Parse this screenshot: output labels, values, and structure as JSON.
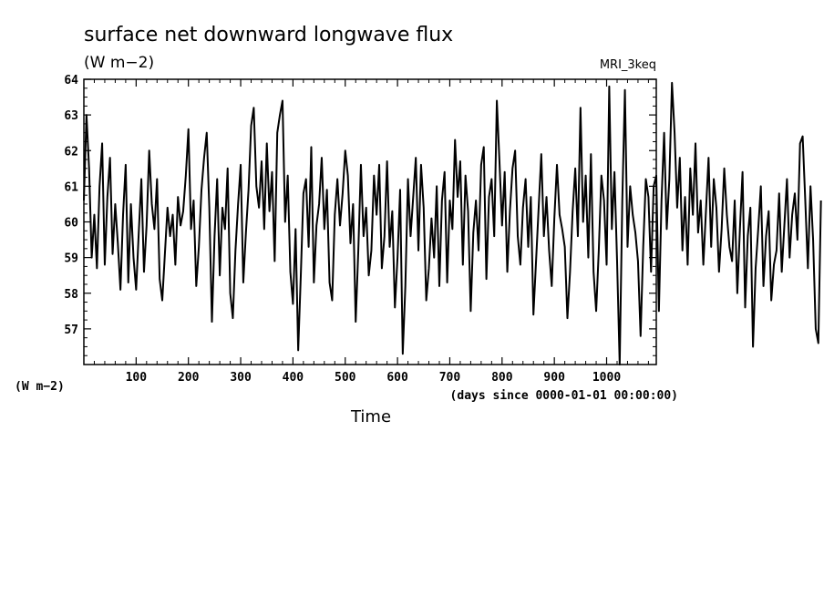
{
  "chart_data": {
    "type": "line",
    "title": "surface net downward longwave flux",
    "units": "(W m−2)",
    "model": "MRI_3keq",
    "xlabel": "Time",
    "x_units": "(days since 0000-01-01 00:00:00)",
    "y_axis_units_label": "(W m−2)",
    "xlim": [
      0,
      1095
    ],
    "ylim": [
      56,
      64
    ],
    "x_ticks": [
      100,
      200,
      300,
      400,
      500,
      600,
      700,
      800,
      900,
      1000
    ],
    "y_ticks": [
      57,
      58,
      59,
      60,
      61,
      62,
      63,
      64
    ],
    "grid": false,
    "line_color": "#000000",
    "series": [
      {
        "x_start": 0,
        "x_step": 5,
        "values": [
          60.6,
          63.0,
          61.5,
          59.0,
          60.2,
          58.7,
          61.0,
          62.2,
          58.8,
          60.7,
          61.8,
          59.1,
          60.5,
          59.4,
          58.1,
          60.2,
          61.6,
          58.3,
          60.5,
          59.0,
          58.1,
          59.7,
          61.2,
          58.6,
          59.9,
          62.0,
          60.5,
          59.8,
          61.2,
          58.4,
          57.8,
          59.1,
          60.4,
          59.6,
          60.2,
          58.8,
          60.7,
          59.9,
          60.3,
          61.3,
          62.6,
          59.8,
          60.6,
          58.2,
          59.3,
          60.9,
          61.8,
          62.5,
          60.4,
          57.2,
          59.6,
          61.2,
          58.5,
          60.4,
          59.8,
          61.5,
          58.0,
          57.3,
          59.2,
          60.5,
          61.6,
          58.3,
          59.7,
          60.9,
          62.7,
          63.2,
          61.0,
          60.4,
          61.7,
          59.8,
          62.2,
          60.3,
          61.4,
          58.9,
          62.5,
          63.0,
          63.4,
          60.0,
          61.3,
          58.6,
          57.7,
          59.8,
          56.4,
          58.5,
          60.8,
          61.2,
          59.3,
          62.1,
          58.3,
          59.9,
          60.5,
          61.8,
          59.8,
          60.9,
          58.3,
          57.8,
          60.2,
          61.2,
          59.9,
          60.8,
          62.0,
          61.3,
          59.4,
          60.5,
          57.2,
          59.2,
          61.6,
          59.6,
          60.4,
          58.5,
          59.2,
          61.3,
          60.2,
          61.6,
          58.7,
          59.6,
          61.7,
          59.3,
          60.3,
          57.6,
          59.0,
          60.9,
          56.3,
          58.2,
          61.2,
          59.6,
          60.7,
          61.8,
          59.2,
          61.6,
          60.4,
          57.8,
          58.7,
          60.1,
          59.0,
          61.0,
          58.2,
          60.6,
          61.4,
          58.3,
          60.6,
          59.8,
          62.3,
          60.7,
          61.7,
          58.8,
          61.3,
          60.3,
          57.5,
          59.7,
          60.6,
          59.2,
          61.6,
          62.1,
          58.4,
          60.7,
          61.2,
          59.6,
          63.4,
          61.7,
          59.9,
          61.4,
          58.6,
          60.3,
          61.5,
          62.0,
          59.6,
          58.8,
          60.4,
          61.2,
          59.3,
          60.7,
          57.4,
          58.9,
          60.4,
          61.9,
          59.6,
          60.7,
          59.2,
          58.2,
          60.1,
          61.6,
          60.2,
          59.8,
          59.3,
          57.3,
          58.6,
          60.3,
          61.5,
          59.6,
          63.2,
          60.0,
          61.3,
          59.0,
          61.9,
          58.6,
          57.5,
          59.2,
          61.3,
          60.6,
          58.8,
          63.8,
          59.8,
          61.4,
          58.9,
          56.0,
          60.6,
          63.7,
          59.3,
          61.0,
          60.2,
          59.7,
          58.9,
          56.8,
          59.3,
          61.2,
          60.7,
          58.6,
          61.0,
          61.3,
          57.5,
          60.6,
          62.5,
          59.8,
          61.2,
          63.9,
          62.5,
          60.4,
          61.8,
          59.2,
          60.7,
          58.8,
          61.5,
          60.2,
          62.2,
          59.7,
          60.6,
          58.8,
          60.3,
          61.8,
          59.3,
          61.2,
          60.4,
          58.6,
          59.8,
          61.5,
          60.2,
          59.3,
          58.9,
          60.6,
          58.0,
          59.8,
          61.4,
          57.6,
          59.6,
          60.4,
          56.5,
          58.7,
          59.8,
          61.0,
          58.2,
          59.6,
          60.3,
          57.8,
          58.8,
          59.2,
          60.8,
          58.6,
          59.9,
          61.2,
          59.0,
          60.2,
          60.8,
          59.5,
          62.2,
          62.4,
          60.6,
          58.7,
          61.0,
          59.5,
          57.0,
          56.6,
          60.6
        ]
      }
    ]
  }
}
